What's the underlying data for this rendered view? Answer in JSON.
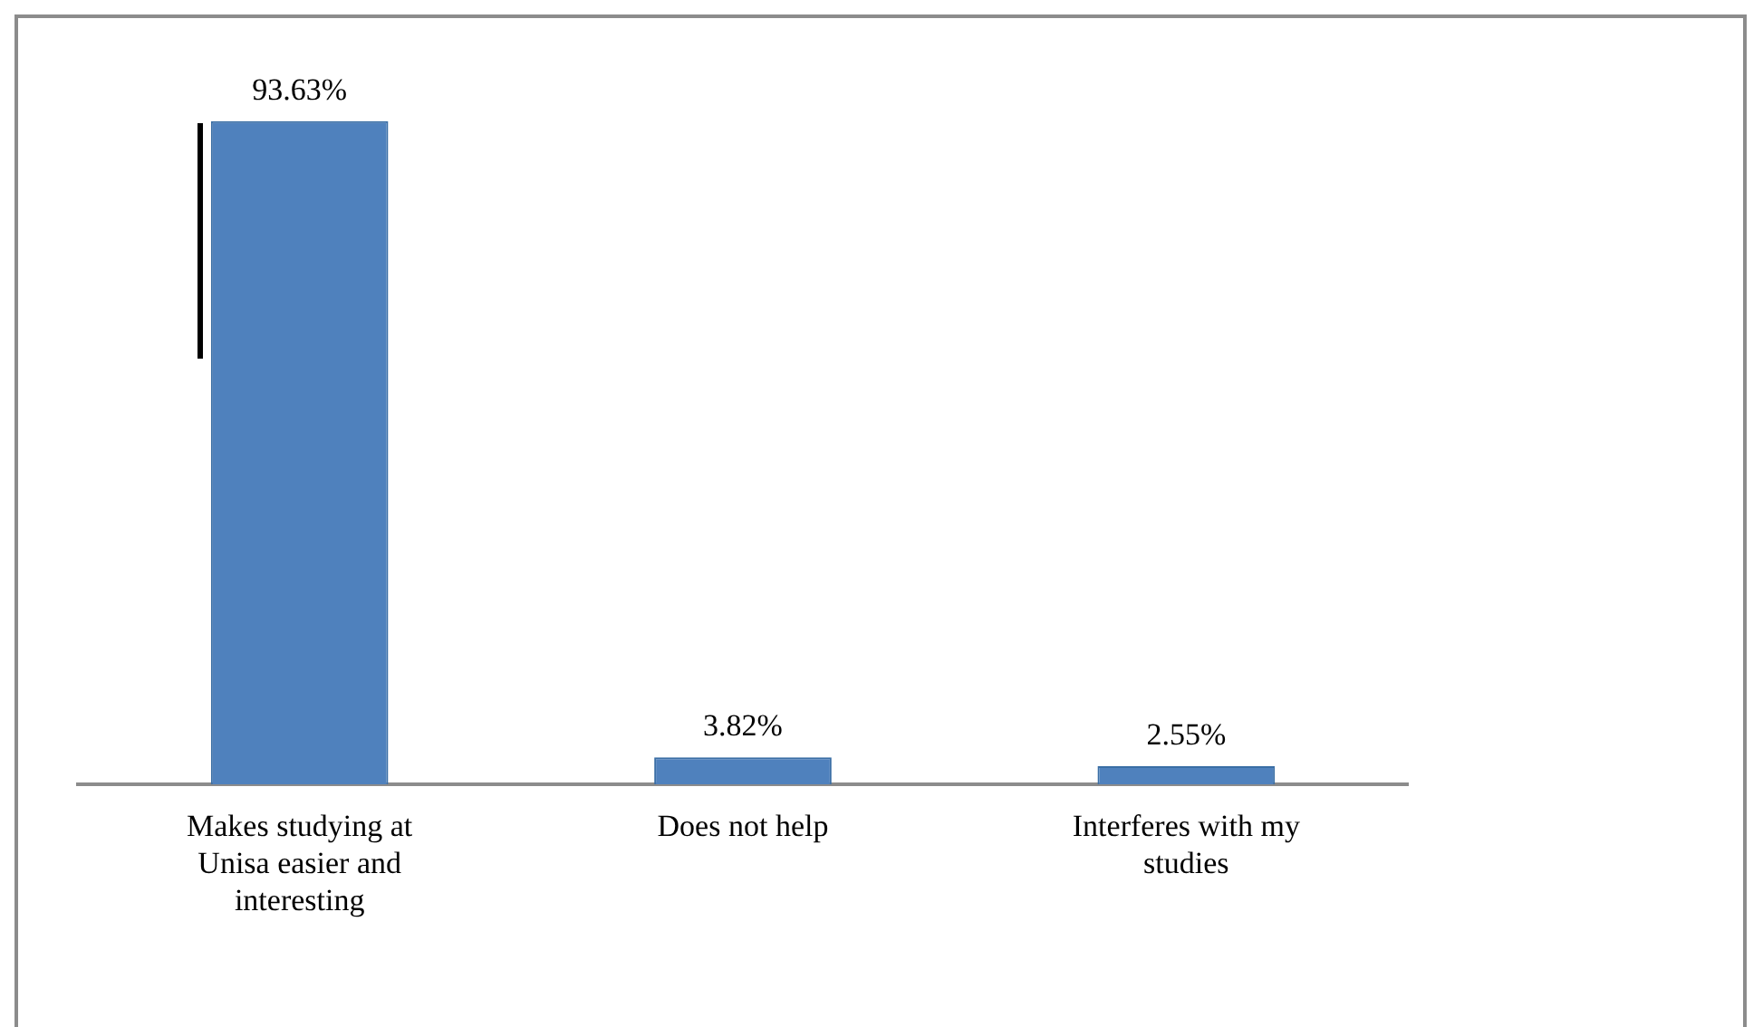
{
  "chart_data": {
    "type": "bar",
    "categories": [
      "Makes studying at Unisa easier and interesting",
      "Does not help",
      "Interferes with my studies"
    ],
    "values": [
      93.63,
      3.82,
      2.55
    ],
    "value_labels": [
      "93.63%",
      "3.82%",
      "2.55%"
    ],
    "color": "#4f81bd",
    "legend": false,
    "grid": false
  }
}
